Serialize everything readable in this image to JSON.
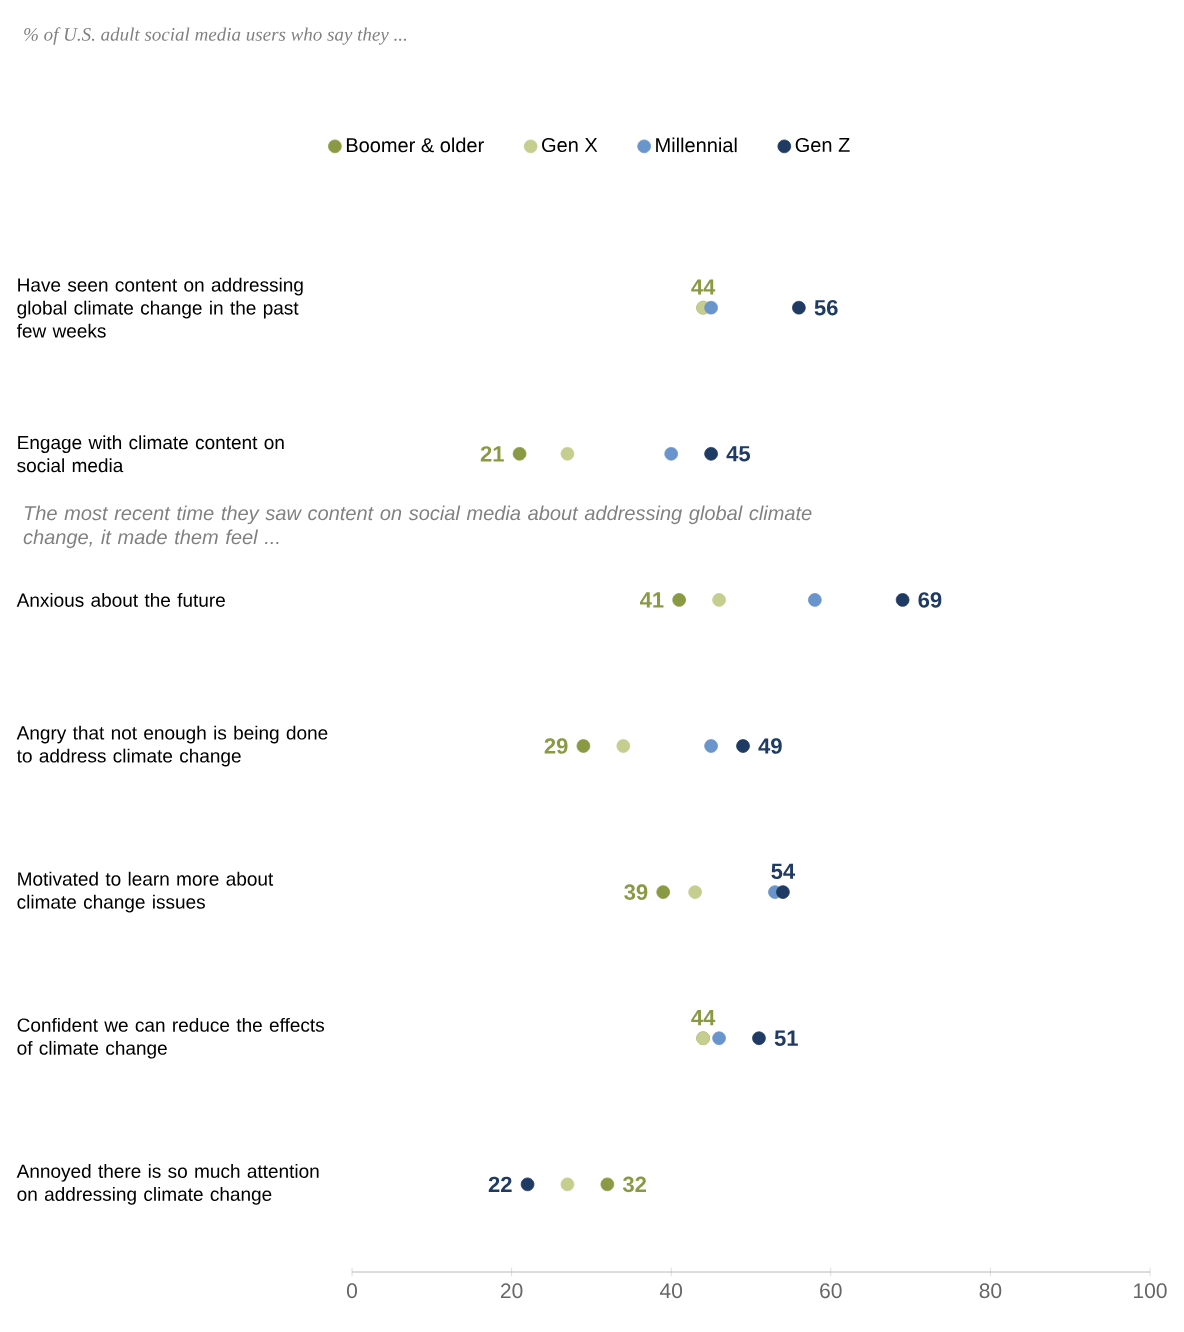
{
  "chart_data": {
    "type": "scatter",
    "orientation": "horizontal",
    "marker": "circle",
    "legend": "top",
    "grid": false,
    "title": "% of U.S. adult social media users who say they ...",
    "annotations": [
      "The most recent time they saw content on social media about addressing global climate change, it made them feel ..."
    ],
    "categories": [
      "Have seen content on addressing global climate change in the past few weeks",
      "Engage with climate content on social media",
      "Anxious about the future",
      "Angry that not enough is being done to address climate change",
      "Motivated to learn more about climate change issues",
      "Confident we can reduce the effects of climate change",
      "Annoyed there is so much attention on addressing climate change"
    ],
    "xlim": [
      0,
      100
    ],
    "xticks": [
      0,
      20,
      40,
      60,
      80,
      100
    ],
    "series": [
      {
        "name": "Boomer & older",
        "color": "#8a9a44",
        "values": [
          44,
          21,
          41,
          29,
          39,
          44,
          32
        ],
        "value_labels": [
          "44",
          "21",
          "41",
          "29",
          "39",
          "44",
          "32"
        ]
      },
      {
        "name": "Gen X",
        "color": "#c5cd8f",
        "values": [
          44,
          27,
          46,
          34,
          43,
          44,
          27
        ]
      },
      {
        "name": "Millennial",
        "color": "#6a95cc",
        "values": [
          45,
          40,
          58,
          45,
          53,
          46,
          null
        ]
      },
      {
        "name": "Gen Z",
        "color": "#1f3a63",
        "values": [
          56,
          45,
          69,
          49,
          54,
          51,
          22
        ],
        "value_labels": [
          "56",
          "45",
          "69",
          "49",
          "54",
          "51",
          "22"
        ]
      }
    ]
  }
}
